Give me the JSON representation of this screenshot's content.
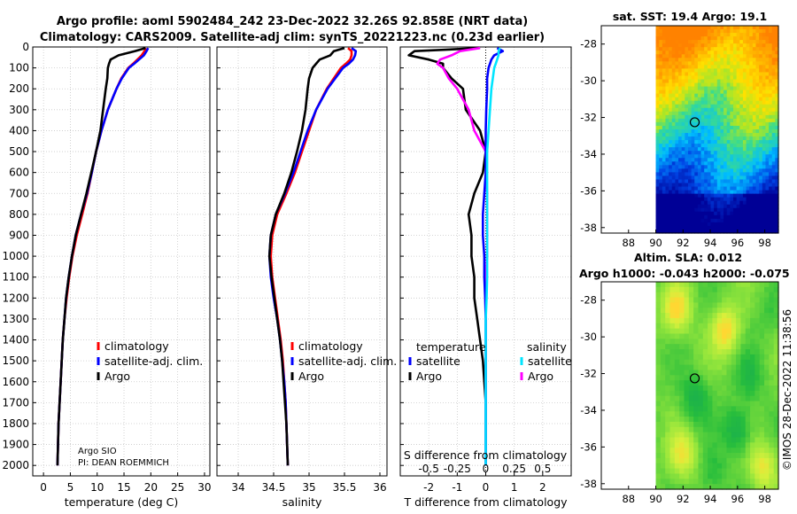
{
  "title_line1": "Argo profile: aoml 5902484_242 23-Dec-2022 32.26S 92.858E (NRT data)",
  "title_line2": "Climatology: CARS2009. Satellite-adj clim: synTS_20221223.nc (0.23d earlier)",
  "footer_stamp": "©IMOS 28-Dec-2022 11:38:56",
  "colors": {
    "climatology": "#ff0000",
    "satellite": "#0000ff",
    "argo": "#000000",
    "temp_satellite": "#0000ff",
    "sal_satellite": "#00e5ff",
    "sal_argo": "#ff00ff",
    "grid": "#c8c8c8"
  },
  "chart_data": [
    {
      "id": "temperature",
      "type": "line",
      "xlabel": "temperature (deg C)",
      "xlim": [
        -2,
        31
      ],
      "ylim": [
        2050,
        0
      ],
      "xticks": [
        0,
        5,
        10,
        15,
        20,
        25,
        30
      ],
      "yticks": [
        0,
        100,
        200,
        300,
        400,
        500,
        600,
        700,
        800,
        900,
        1000,
        1100,
        1200,
        1300,
        1400,
        1500,
        1600,
        1700,
        1800,
        1900,
        2000
      ],
      "legend": [
        "climatology",
        "satellite-adj. clim.",
        "Argo"
      ],
      "annotation": [
        "Argo SIO",
        "PI: DEAN ROEMMICH"
      ],
      "depth": [
        5,
        20,
        40,
        60,
        80,
        100,
        150,
        200,
        300,
        400,
        500,
        600,
        700,
        800,
        900,
        1000,
        1100,
        1200,
        1300,
        1400,
        1500,
        1600,
        1700,
        1800,
        1900,
        2000
      ],
      "series": [
        {
          "name": "climatology",
          "values": [
            19.1,
            18.8,
            18.3,
            17.5,
            16.7,
            15.8,
            14.5,
            13.6,
            12.0,
            10.8,
            9.8,
            9.0,
            8.2,
            7.2,
            6.2,
            5.4,
            4.8,
            4.3,
            3.9,
            3.6,
            3.4,
            3.2,
            3.0,
            2.8,
            2.7,
            2.6
          ]
        },
        {
          "name": "satellite-adj. clim.",
          "values": [
            19.5,
            19.2,
            18.7,
            17.8,
            16.9,
            15.9,
            14.6,
            13.6,
            12.0,
            10.8,
            9.8,
            9.0,
            8.1,
            7.0,
            6.0,
            5.3,
            4.7,
            4.2,
            3.9,
            3.6,
            3.4,
            3.2,
            3.0,
            2.8,
            2.7,
            2.6
          ]
        },
        {
          "name": "Argo",
          "values": [
            19.0,
            17.0,
            14.0,
            12.5,
            12.2,
            12.0,
            11.9,
            11.6,
            11.1,
            10.6,
            9.8,
            8.9,
            8.0,
            7.0,
            6.0,
            5.3,
            4.7,
            4.2,
            3.9,
            3.6,
            3.4,
            3.2,
            3.0,
            2.8,
            2.7,
            2.6
          ]
        }
      ]
    },
    {
      "id": "salinity",
      "type": "line",
      "xlabel": "salinity",
      "xlim": [
        33.7,
        36.1
      ],
      "ylim": [
        2050,
        0
      ],
      "xticks": [
        34,
        34.5,
        35,
        35.5,
        36
      ],
      "legend": [
        "climatology",
        "satellite-adj. clim.",
        "Argo"
      ],
      "depth": [
        5,
        20,
        40,
        60,
        80,
        100,
        150,
        200,
        300,
        400,
        500,
        600,
        700,
        800,
        900,
        1000,
        1100,
        1200,
        1300,
        1400,
        1500,
        1600,
        1700,
        1800,
        1900,
        2000
      ],
      "series": [
        {
          "name": "climatology",
          "values": [
            35.55,
            35.6,
            35.6,
            35.58,
            35.52,
            35.45,
            35.35,
            35.25,
            35.1,
            35.0,
            34.9,
            34.8,
            34.68,
            34.55,
            34.48,
            34.46,
            34.48,
            34.52,
            34.56,
            34.6,
            34.63,
            34.65,
            34.67,
            34.68,
            34.69,
            34.7
          ]
        },
        {
          "name": "satellite-adj. clim.",
          "values": [
            35.6,
            35.66,
            35.65,
            35.62,
            35.56,
            35.48,
            35.37,
            35.26,
            35.1,
            34.98,
            34.88,
            34.78,
            34.66,
            34.53,
            34.46,
            34.44,
            34.46,
            34.5,
            34.55,
            34.59,
            34.62,
            34.65,
            34.67,
            34.68,
            34.69,
            34.7
          ]
        },
        {
          "name": "Argo",
          "values": [
            35.5,
            35.35,
            35.3,
            35.15,
            35.1,
            35.05,
            35.0,
            34.98,
            34.95,
            34.9,
            34.83,
            34.75,
            34.65,
            34.53,
            34.46,
            34.44,
            34.47,
            34.51,
            34.55,
            34.59,
            34.62,
            34.64,
            34.66,
            34.68,
            34.69,
            34.7
          ]
        }
      ]
    },
    {
      "id": "difference",
      "type": "line",
      "xlabel": "T difference from climatology",
      "top_xlabel": "S difference from climatology",
      "xlim": [
        -3,
        3
      ],
      "ylim": [
        2050,
        0
      ],
      "xticks": [
        -2,
        -1,
        0,
        1,
        2
      ],
      "s_ticks": [
        "-0.5",
        "-0.25",
        "0",
        "0.25",
        "0.5"
      ],
      "s_tick_positions": [
        -2,
        -1,
        0,
        1,
        2
      ],
      "legend_temperature": {
        "title": "temperature",
        "items": [
          "satellite",
          "Argo"
        ]
      },
      "legend_salinity": {
        "title": "salinity",
        "items": [
          "satellite",
          "Argo"
        ]
      },
      "depth": [
        5,
        20,
        40,
        60,
        80,
        100,
        150,
        200,
        300,
        400,
        500,
        600,
        700,
        800,
        900,
        1000,
        1100,
        1200,
        1300,
        1400,
        1500,
        1600,
        1700,
        1800,
        1900,
        2000
      ],
      "series": [
        {
          "name": "T satellite",
          "values": [
            0.4,
            0.6,
            0.3,
            0.2,
            0.15,
            0.1,
            0.05,
            0.05,
            0.02,
            0.0,
            0.0,
            0.0,
            -0.05,
            -0.1,
            -0.1,
            -0.05,
            -0.05,
            -0.02,
            0.0,
            0.0,
            0.0,
            0.0,
            0.0,
            0.0,
            0.0,
            0.0
          ]
        },
        {
          "name": "T Argo",
          "values": [
            -0.2,
            -2.5,
            -2.7,
            -2.0,
            -1.5,
            -1.5,
            -1.2,
            -0.8,
            -0.7,
            -0.2,
            0.0,
            -0.1,
            -0.4,
            -0.6,
            -0.5,
            -0.5,
            -0.4,
            -0.4,
            -0.3,
            -0.2,
            -0.1,
            -0.05,
            0.0,
            0.0,
            0.0,
            0.0
          ]
        },
        {
          "name": "S satellite",
          "values": [
            0.5,
            0.45,
            0.45,
            0.4,
            0.35,
            0.3,
            0.25,
            0.2,
            0.15,
            0.1,
            0.05,
            0.05,
            0.05,
            0.05,
            0.05,
            0.05,
            0.05,
            0.03,
            0.0,
            0.0,
            0.0,
            0.0,
            0.0,
            0.0,
            0.0,
            0.0
          ]
        },
        {
          "name": "S Argo",
          "values": [
            -0.2,
            -0.9,
            -1.2,
            -1.6,
            -1.7,
            -1.5,
            -1.3,
            -1.0,
            -0.6,
            -0.4,
            0.0,
            0.02,
            0.05,
            0.05,
            0.05,
            0.05,
            0.0,
            0.0,
            0.0,
            0.0,
            0.0,
            0.0,
            0.0,
            0.0,
            0.0,
            0.0
          ]
        }
      ]
    },
    {
      "id": "sst_map",
      "type": "heatmap",
      "title": "sat. SST: 19.4 Argo: 19.1",
      "xlim": [
        86,
        99
      ],
      "ylim": [
        -38.3,
        -27
      ],
      "xticks": [
        88,
        90,
        92,
        94,
        96,
        98
      ],
      "yticks": [
        -28,
        -30,
        -32,
        -34,
        -36,
        -38
      ],
      "data_min_lon": 90,
      "argo_position": [
        92.858,
        -32.26
      ]
    },
    {
      "id": "sla_map",
      "type": "heatmap",
      "title": "Altim. SLA: 0.012",
      "subtitle": "Argo h1000: -0.043 h2000: -0.075",
      "xlim": [
        86,
        99
      ],
      "ylim": [
        -38.3,
        -27
      ],
      "xticks": [
        88,
        90,
        92,
        94,
        96,
        98
      ],
      "yticks": [
        -28,
        -30,
        -32,
        -34,
        -36,
        -38
      ],
      "data_min_lon": 90,
      "argo_position": [
        92.858,
        -32.26
      ]
    }
  ]
}
